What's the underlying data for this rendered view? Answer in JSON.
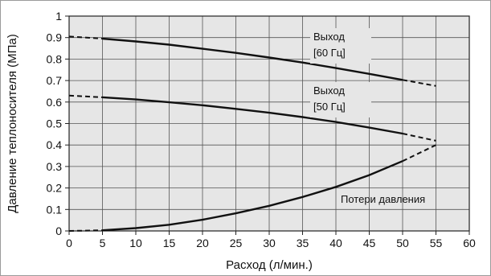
{
  "chart_data": {
    "type": "line",
    "title": "",
    "xlabel": "Расход (л/мин.)",
    "ylabel": "Давление теплоносителя (МПа)",
    "xlim": [
      0,
      60
    ],
    "ylim": [
      0,
      1
    ],
    "x_ticks": [
      "0",
      "5",
      "10",
      "15",
      "20",
      "25",
      "30",
      "35",
      "40",
      "45",
      "50",
      "55",
      "60"
    ],
    "y_ticks": [
      "0",
      "0.1",
      "0.2",
      "0.3",
      "0.4",
      "0.5",
      "0.6",
      "0.7",
      "0.8",
      "0.9",
      "1"
    ],
    "grid": true,
    "plot_background": "#e6e6e6",
    "grid_color": "#555555",
    "series": [
      {
        "id": "out60",
        "name": "Выход [60 Гц]",
        "label_lines": [
          "Выход",
          "[60 Гц]"
        ],
        "color": "#111111",
        "points": [
          [
            0,
            0.905
          ],
          [
            5,
            0.895
          ],
          [
            10,
            0.882
          ],
          [
            15,
            0.867
          ],
          [
            20,
            0.848
          ],
          [
            25,
            0.829
          ],
          [
            30,
            0.807
          ],
          [
            35,
            0.784
          ],
          [
            40,
            0.758
          ],
          [
            45,
            0.731
          ],
          [
            50,
            0.703
          ],
          [
            55,
            0.675
          ]
        ],
        "solid_range": [
          5,
          50
        ]
      },
      {
        "id": "out50",
        "name": "Выход [50 Гц]",
        "label_lines": [
          "Выход",
          "[50 Гц]"
        ],
        "color": "#111111",
        "points": [
          [
            0,
            0.63
          ],
          [
            5,
            0.622
          ],
          [
            10,
            0.612
          ],
          [
            15,
            0.599
          ],
          [
            20,
            0.585
          ],
          [
            25,
            0.568
          ],
          [
            30,
            0.55
          ],
          [
            35,
            0.53
          ],
          [
            40,
            0.507
          ],
          [
            45,
            0.481
          ],
          [
            50,
            0.453
          ],
          [
            55,
            0.42
          ]
        ],
        "solid_range": [
          5,
          50
        ]
      },
      {
        "id": "loss",
        "name": "Потери давления",
        "label_lines": [
          "Потери давления"
        ],
        "color": "#111111",
        "points": [
          [
            0,
            0
          ],
          [
            5,
            0.003
          ],
          [
            10,
            0.013
          ],
          [
            15,
            0.029
          ],
          [
            20,
            0.052
          ],
          [
            25,
            0.082
          ],
          [
            30,
            0.117
          ],
          [
            35,
            0.158
          ],
          [
            40,
            0.205
          ],
          [
            45,
            0.26
          ],
          [
            50,
            0.325
          ],
          [
            55,
            0.4
          ]
        ],
        "solid_range": [
          5,
          50
        ]
      }
    ]
  }
}
